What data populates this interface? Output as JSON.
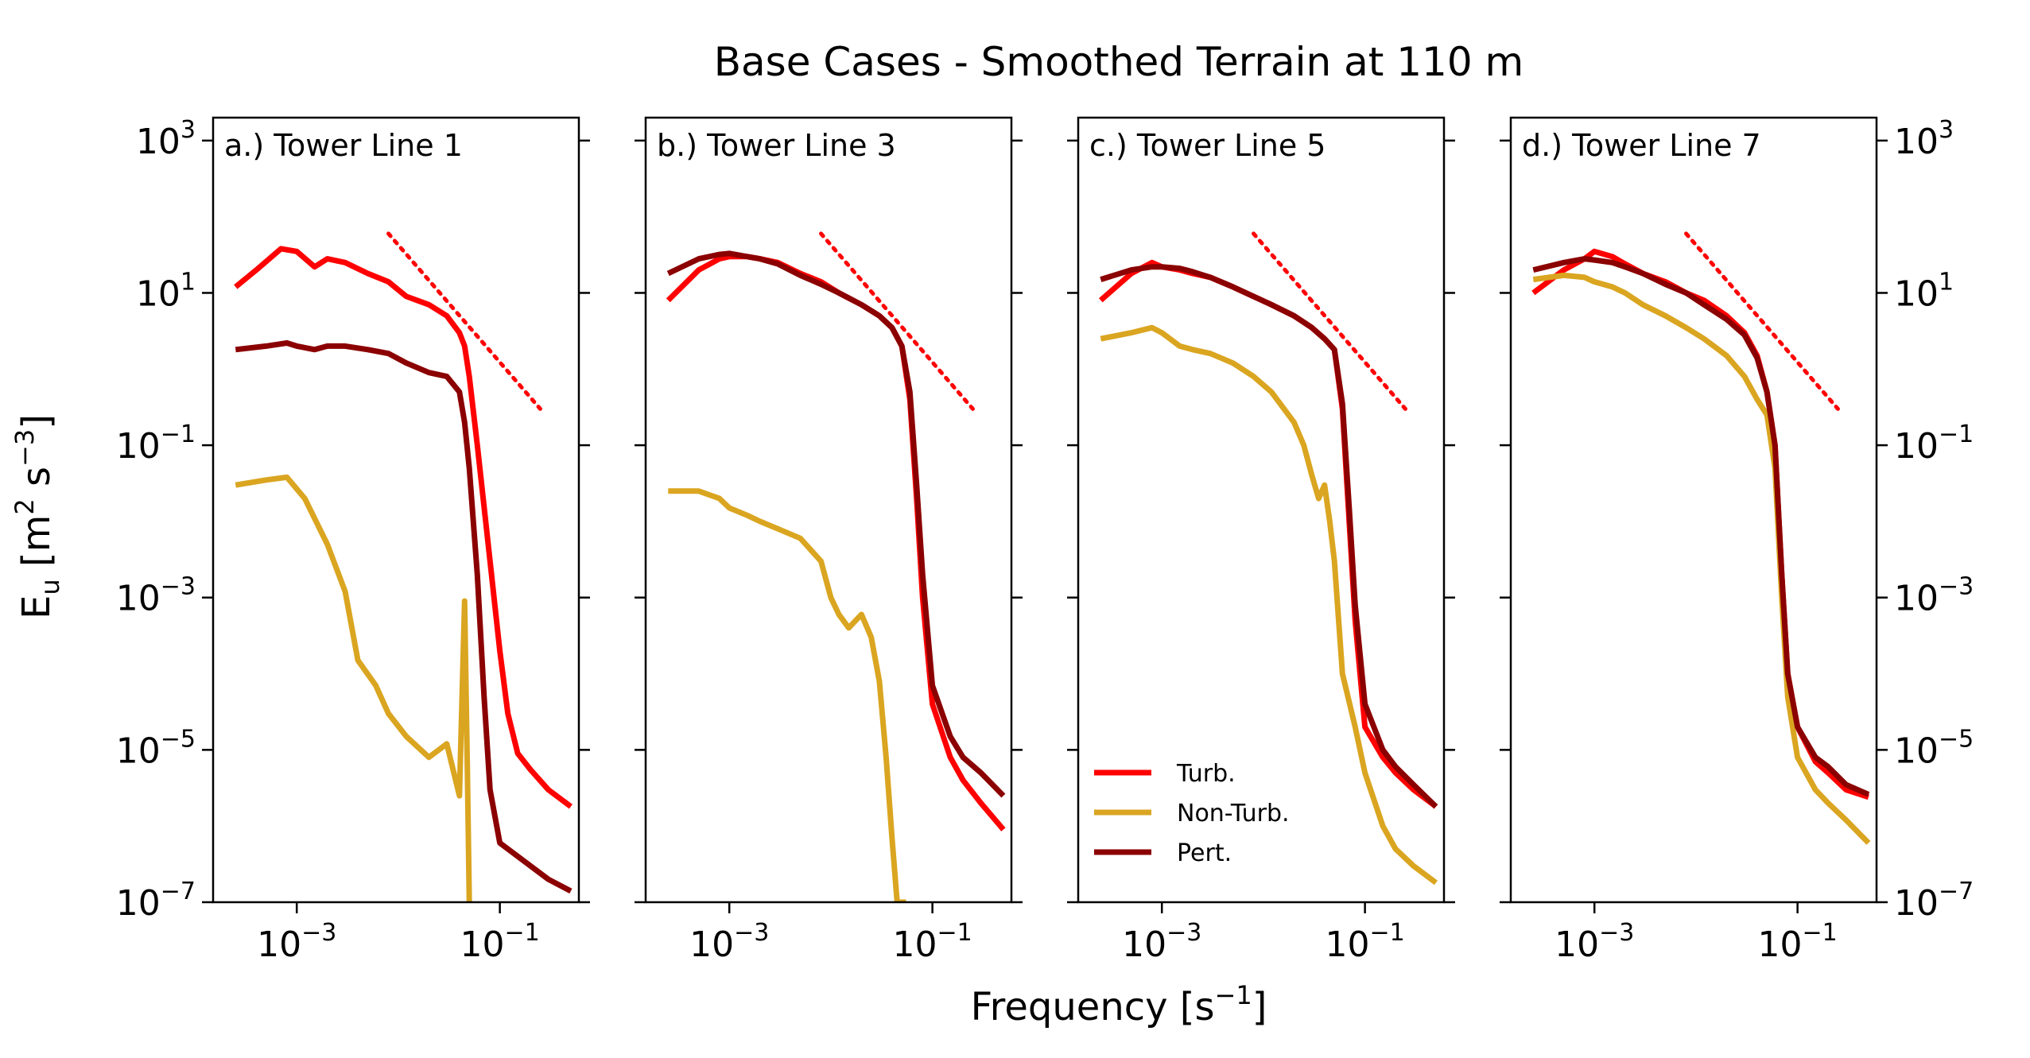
{
  "chart_data": {
    "type": "line",
    "title": "Base Cases - Smoothed Terrain at 110 m",
    "xlabel": "Frequency [s⁻¹]",
    "xlabel_base": "Frequency [s",
    "xlabel_sup": "−1",
    "xlabel_end": "]",
    "ylabel": "E_u [m² s⁻³]",
    "ylabel_base": "E",
    "ylabel_sub": "u",
    "ylabel_mid1": " [m",
    "ylabel_sup1": "2",
    "ylabel_mid2": " s",
    "ylabel_sup2": "−3",
    "ylabel_end": "]",
    "xscale": "log",
    "yscale": "log",
    "xlim": [
      0.00015,
      0.6
    ],
    "ylim": [
      1e-07,
      2000
    ],
    "x_ticks": [
      {
        "value": 0.001,
        "base": "10",
        "exp": "−3"
      },
      {
        "value": 0.1,
        "base": "10",
        "exp": "−1"
      }
    ],
    "y_ticks": [
      {
        "value": 1000,
        "base": "10",
        "exp": "3"
      },
      {
        "value": 10,
        "base": "10",
        "exp": "1"
      },
      {
        "value": 0.1,
        "base": "10",
        "exp": "−1"
      },
      {
        "value": 0.001,
        "base": "10",
        "exp": "−3"
      },
      {
        "value": 1e-05,
        "base": "10",
        "exp": "−5"
      },
      {
        "value": 1e-07,
        "base": "10",
        "exp": "−7"
      }
    ],
    "legend": {
      "location": "lower-left of panel c",
      "entries": [
        {
          "label": "Turb.",
          "color": "#ff0000"
        },
        {
          "label": "Non-Turb.",
          "color": "#daa520"
        },
        {
          "label": "Pert.",
          "color": "#8b0000"
        }
      ]
    },
    "reference_slope": -1.6667,
    "panels": [
      {
        "title": "a.) Tower Line 1",
        "ref_line": {
          "x": [
            0.008,
            0.25
          ],
          "y": [
            60,
            0.3
          ]
        },
        "series": [
          {
            "name": "Turb.",
            "color": "#ff0000",
            "x": [
              0.00025,
              0.0004,
              0.0007,
              0.001,
              0.0015,
              0.002,
              0.003,
              0.005,
              0.008,
              0.012,
              0.02,
              0.03,
              0.04,
              0.045,
              0.05,
              0.06,
              0.08,
              0.1,
              0.12,
              0.15,
              0.2,
              0.3,
              0.5
            ],
            "y": [
              12,
              20,
              38,
              35,
              22,
              28,
              25,
              18,
              14,
              9,
              7,
              5,
              3,
              2,
              0.8,
              0.1,
              0.003,
              0.0002,
              3e-05,
              9e-06,
              5.5e-06,
              3e-06,
              1.8e-06
            ]
          },
          {
            "name": "Non-Turb.",
            "color": "#daa520",
            "x": [
              0.00025,
              0.0005,
              0.0008,
              0.0012,
              0.002,
              0.003,
              0.004,
              0.006,
              0.008,
              0.012,
              0.02,
              0.03,
              0.04,
              0.045,
              0.048,
              0.05,
              0.052
            ],
            "y": [
              0.03,
              0.035,
              0.038,
              0.02,
              0.005,
              0.0012,
              0.00015,
              7e-05,
              3e-05,
              1.5e-05,
              8e-06,
              1.2e-05,
              2.5e-06,
              0.0009,
              4.5e-06,
              1e-07,
              1e-07
            ]
          },
          {
            "name": "Pert.",
            "color": "#8b0000",
            "x": [
              0.00025,
              0.0005,
              0.0008,
              0.001,
              0.0015,
              0.002,
              0.003,
              0.005,
              0.008,
              0.012,
              0.02,
              0.03,
              0.04,
              0.045,
              0.05,
              0.06,
              0.07,
              0.08,
              0.1,
              0.15,
              0.2,
              0.3,
              0.5
            ],
            "y": [
              1.8,
              2,
              2.2,
              2,
              1.8,
              2,
              2,
              1.8,
              1.6,
              1.2,
              0.9,
              0.8,
              0.5,
              0.2,
              0.05,
              0.002,
              5e-05,
              3e-06,
              6e-07,
              4e-07,
              3e-07,
              2e-07,
              1.4e-07
            ]
          }
        ]
      },
      {
        "title": "b.) Tower Line 3",
        "ref_line": {
          "x": [
            0.008,
            0.25
          ],
          "y": [
            60,
            0.3
          ]
        },
        "series": [
          {
            "name": "Turb.",
            "color": "#ff0000",
            "x": [
              0.00025,
              0.0005,
              0.0008,
              0.001,
              0.0015,
              0.002,
              0.003,
              0.005,
              0.008,
              0.012,
              0.02,
              0.03,
              0.04,
              0.05,
              0.06,
              0.07,
              0.08,
              0.1,
              0.15,
              0.2,
              0.3,
              0.5
            ],
            "y": [
              8,
              20,
              28,
              30,
              30,
              28,
              25,
              18,
              14,
              10,
              7,
              5,
              3.5,
              2,
              0.4,
              0.02,
              0.001,
              4e-05,
              8e-06,
              4e-06,
              2e-06,
              9e-07
            ]
          },
          {
            "name": "Non-Turb.",
            "color": "#daa520",
            "x": [
              0.00025,
              0.0005,
              0.0008,
              0.001,
              0.0015,
              0.002,
              0.003,
              0.005,
              0.008,
              0.01,
              0.012,
              0.015,
              0.02,
              0.025,
              0.03,
              0.035,
              0.04,
              0.045,
              0.05,
              0.055
            ],
            "y": [
              0.025,
              0.025,
              0.02,
              0.015,
              0.012,
              0.01,
              0.008,
              0.006,
              0.003,
              0.001,
              0.0006,
              0.0004,
              0.0006,
              0.0003,
              8e-05,
              8e-06,
              7e-07,
              1e-07,
              1e-07,
              1e-07
            ]
          },
          {
            "name": "Pert.",
            "color": "#8b0000",
            "x": [
              0.00025,
              0.0005,
              0.0008,
              0.001,
              0.0015,
              0.002,
              0.003,
              0.005,
              0.008,
              0.012,
              0.02,
              0.03,
              0.04,
              0.05,
              0.06,
              0.07,
              0.08,
              0.1,
              0.15,
              0.2,
              0.3,
              0.5
            ],
            "y": [
              18,
              28,
              32,
              33,
              30,
              28,
              24,
              17,
              13,
              10,
              7,
              5,
              3.5,
              2,
              0.5,
              0.03,
              0.002,
              7e-05,
              1.5e-05,
              8e-06,
              5e-06,
              2.5e-06
            ]
          }
        ]
      },
      {
        "title": "c.) Tower Line 5",
        "ref_line": {
          "x": [
            0.008,
            0.25
          ],
          "y": [
            60,
            0.3
          ]
        },
        "series": [
          {
            "name": "Turb.",
            "color": "#ff0000",
            "x": [
              0.00025,
              0.0005,
              0.0008,
              0.001,
              0.0015,
              0.002,
              0.003,
              0.005,
              0.008,
              0.012,
              0.02,
              0.03,
              0.04,
              0.05,
              0.06,
              0.07,
              0.08,
              0.1,
              0.15,
              0.2,
              0.3,
              0.5
            ],
            "y": [
              8,
              18,
              25,
              22,
              20,
              18,
              16,
              12,
              9,
              7,
              5,
              3.5,
              2.5,
              1.8,
              0.3,
              0.01,
              0.0005,
              2e-05,
              8e-06,
              5e-06,
              3e-06,
              1.8e-06
            ]
          },
          {
            "name": "Non-Turb.",
            "color": "#daa520",
            "x": [
              0.00025,
              0.0005,
              0.0008,
              0.001,
              0.0015,
              0.002,
              0.003,
              0.005,
              0.008,
              0.012,
              0.02,
              0.025,
              0.03,
              0.035,
              0.04,
              0.045,
              0.05,
              0.06,
              0.08,
              0.1,
              0.15,
              0.2,
              0.3,
              0.5
            ],
            "y": [
              2.5,
              3,
              3.5,
              3,
              2,
              1.8,
              1.6,
              1.2,
              0.8,
              0.5,
              0.2,
              0.1,
              0.04,
              0.02,
              0.03,
              0.01,
              0.003,
              0.0001,
              2e-05,
              5e-06,
              1e-06,
              5e-07,
              3e-07,
              1.8e-07
            ]
          },
          {
            "name": "Pert.",
            "color": "#8b0000",
            "x": [
              0.00025,
              0.0005,
              0.0008,
              0.001,
              0.0015,
              0.002,
              0.003,
              0.005,
              0.008,
              0.012,
              0.02,
              0.03,
              0.04,
              0.05,
              0.06,
              0.07,
              0.08,
              0.1,
              0.15,
              0.2,
              0.3,
              0.5
            ],
            "y": [
              15,
              20,
              22,
              22,
              21,
              19,
              16,
              12,
              9,
              7,
              5,
              3.5,
              2.5,
              1.8,
              0.35,
              0.015,
              0.0008,
              4e-05,
              1e-05,
              6e-06,
              3.5e-06,
              1.8e-06
            ]
          }
        ]
      },
      {
        "title": "d.) Tower Line 7",
        "ref_line": {
          "x": [
            0.008,
            0.25
          ],
          "y": [
            60,
            0.3
          ]
        },
        "series": [
          {
            "name": "Turb.",
            "color": "#ff0000",
            "x": [
              0.00025,
              0.0005,
              0.0008,
              0.001,
              0.0015,
              0.002,
              0.003,
              0.005,
              0.008,
              0.012,
              0.02,
              0.03,
              0.04,
              0.05,
              0.06,
              0.07,
              0.08,
              0.1,
              0.15,
              0.2,
              0.3,
              0.5
            ],
            "y": [
              10,
              20,
              28,
              35,
              30,
              24,
              18,
              14,
              10,
              8,
              5,
              3,
              1.5,
              0.5,
              0.1,
              0.002,
              0.0001,
              2e-05,
              7e-06,
              5e-06,
              3e-06,
              2.4e-06
            ]
          },
          {
            "name": "Non-Turb.",
            "color": "#daa520",
            "x": [
              0.00025,
              0.0005,
              0.0008,
              0.001,
              0.0015,
              0.002,
              0.003,
              0.005,
              0.008,
              0.012,
              0.02,
              0.03,
              0.04,
              0.05,
              0.06,
              0.07,
              0.08,
              0.1,
              0.15,
              0.2,
              0.3,
              0.5
            ],
            "y": [
              15,
              17,
              16,
              14,
              12,
              10,
              7,
              5,
              3.5,
              2.5,
              1.5,
              0.8,
              0.4,
              0.25,
              0.05,
              0.001,
              5e-05,
              8e-06,
              3e-06,
              2e-06,
              1.2e-06,
              6e-07
            ]
          },
          {
            "name": "Pert.",
            "color": "#8b0000",
            "x": [
              0.00025,
              0.0005,
              0.0008,
              0.001,
              0.0015,
              0.002,
              0.003,
              0.005,
              0.008,
              0.012,
              0.02,
              0.03,
              0.04,
              0.05,
              0.06,
              0.07,
              0.08,
              0.1,
              0.15,
              0.2,
              0.3,
              0.5
            ],
            "y": [
              20,
              25,
              28,
              27,
              25,
              22,
              18,
              13,
              10,
              7,
              4.5,
              2.8,
              1.4,
              0.5,
              0.1,
              0.002,
              0.0001,
              2e-05,
              8e-06,
              6e-06,
              3.5e-06,
              2.6e-06
            ]
          }
        ]
      }
    ]
  }
}
